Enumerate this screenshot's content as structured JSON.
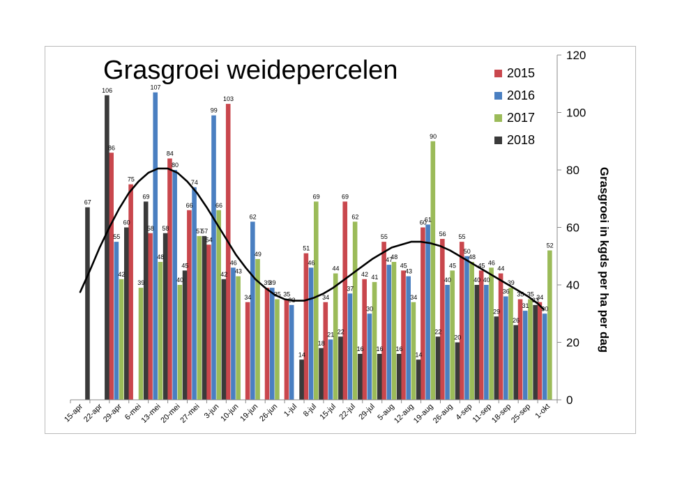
{
  "chart_data": {
    "type": "bar",
    "title": "Grasgroei weidepercelen",
    "ylabel": "Grasgroei in kgds per ha per dag",
    "xlabel": "",
    "ylim": [
      0,
      120
    ],
    "yticks": [
      0,
      20,
      40,
      60,
      80,
      100,
      120
    ],
    "y_axis_side": "right",
    "grid": false,
    "legend_position": "top-right",
    "categories": [
      "15-apr",
      "22-apr",
      "29-apr",
      "6-mei",
      "13-mei",
      "20-mei",
      "27-mei",
      "3-jun",
      "10-jun",
      "19-jun",
      "26-jun",
      "1-jul",
      "8-jul",
      "15-jul",
      "22-jul",
      "29-jul",
      "5-aug",
      "12-aug",
      "19-aug",
      "26-aug",
      "4-sep",
      "11-sep",
      "18-sep",
      "25-sep",
      "1-okt"
    ],
    "series": [
      {
        "name": "2015",
        "color": "#c9474d",
        "values": [
          null,
          null,
          86,
          75,
          58,
          84,
          66,
          54,
          103,
          34,
          39,
          35,
          51,
          34,
          69,
          42,
          55,
          45,
          60,
          56,
          55,
          45,
          44,
          35,
          34
        ]
      },
      {
        "name": "2016",
        "color": "#4a7fc1",
        "values": [
          null,
          null,
          55,
          null,
          107,
          80,
          74,
          99,
          46,
          62,
          39,
          33,
          46,
          21,
          37,
          30,
          47,
          43,
          61,
          40,
          50,
          40,
          36,
          31,
          30
        ]
      },
      {
        "name": "2017",
        "color": "#9bbb59",
        "values": [
          null,
          null,
          42,
          39,
          48,
          40,
          57,
          66,
          43,
          49,
          35,
          null,
          69,
          44,
          62,
          41,
          48,
          34,
          90,
          45,
          48,
          46,
          39,
          35,
          52
        ]
      },
      {
        "name": "2018",
        "color": "#3a3a3a",
        "values": [
          67,
          106,
          60,
          69,
          58,
          45,
          57,
          42,
          null,
          null,
          null,
          14,
          18,
          22,
          16,
          16,
          16,
          14,
          22,
          20,
          40,
          29,
          26,
          33,
          null
        ]
      }
    ],
    "trendline": {
      "color": "#000000",
      "x": [
        0.5,
        1,
        1.5,
        2,
        2.5,
        3,
        3.5,
        4,
        4.5,
        5,
        5.5,
        6,
        6.5,
        7,
        7.5,
        8,
        8.5,
        9,
        9.5,
        10,
        10.5,
        11,
        11.5,
        12,
        12.5,
        13,
        13.5,
        14,
        14.5,
        15,
        15.5,
        16,
        16.5,
        17,
        17.5,
        18,
        18.5,
        19,
        19.5,
        20,
        20.5,
        21,
        21.5,
        22,
        22.5,
        23,
        23.5,
        24,
        24.3
      ],
      "y": [
        37.5,
        45,
        53,
        60,
        66.5,
        72,
        76,
        79,
        80.5,
        80.5,
        79,
        76,
        72,
        67,
        61.5,
        56,
        50.5,
        46,
        42,
        39,
        36.5,
        35,
        34.5,
        34.5,
        35.5,
        37,
        39,
        41.5,
        44,
        46.5,
        49,
        51,
        53,
        54,
        55,
        55,
        54.5,
        53.5,
        52,
        50,
        48,
        46,
        44,
        42,
        40,
        38,
        36,
        33.5,
        31.5
      ]
    }
  }
}
